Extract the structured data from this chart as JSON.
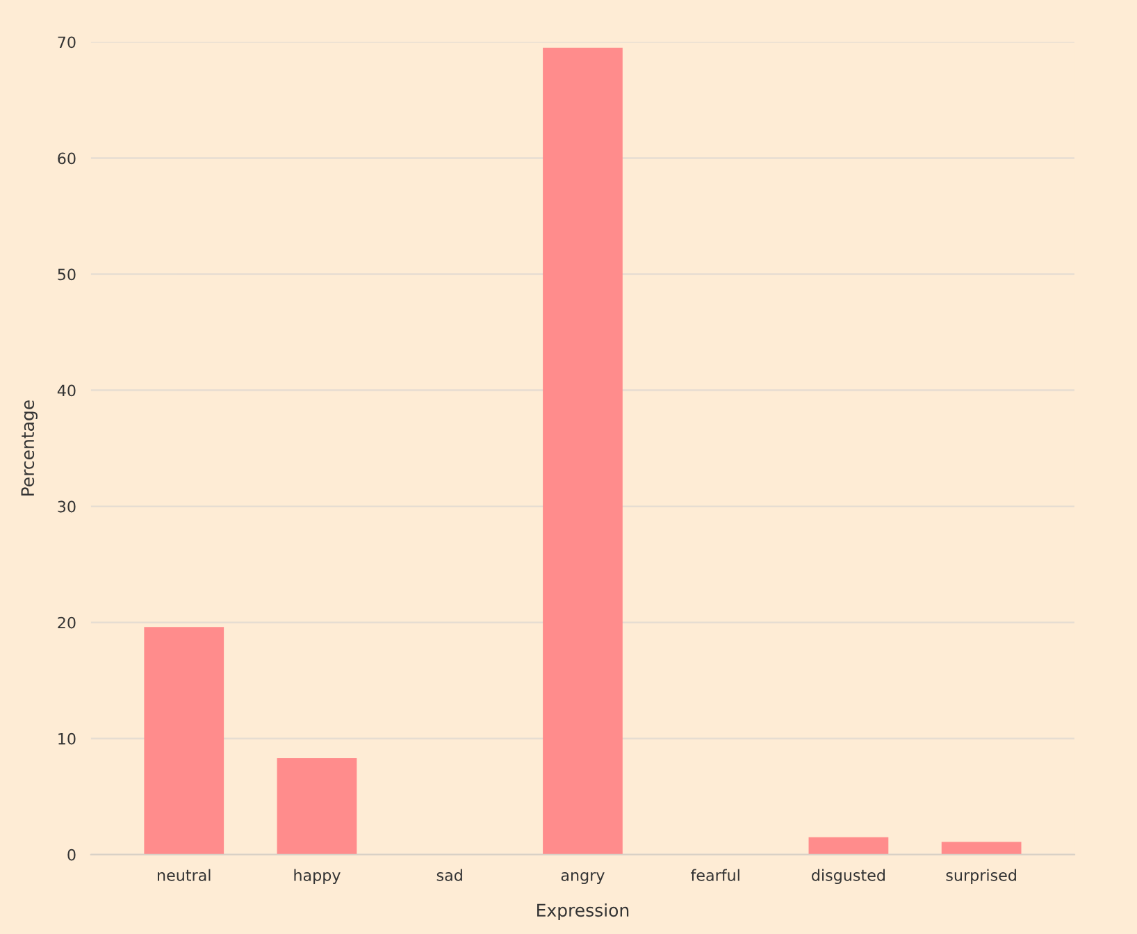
{
  "chart_data": {
    "type": "bar",
    "xlabel": "Expression",
    "ylabel": "Percentage",
    "categories": [
      "neutral",
      "happy",
      "sad",
      "angry",
      "fearful",
      "disgusted",
      "surprised"
    ],
    "values": [
      19.6,
      8.3,
      0,
      69.5,
      0,
      1.5,
      1.1
    ],
    "color": "#ff8c8c",
    "ylim": [
      0,
      70
    ],
    "yticks": [
      0,
      10,
      20,
      30,
      40,
      50,
      60,
      70
    ],
    "grid": "y"
  }
}
